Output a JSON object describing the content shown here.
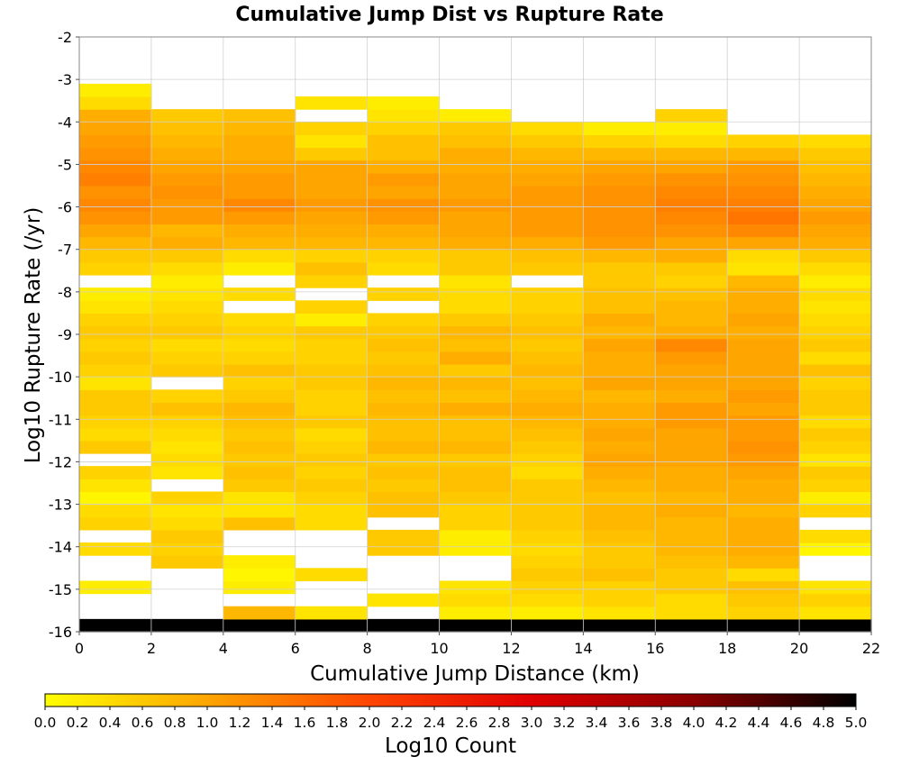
{
  "chart_data": {
    "type": "heatmap",
    "title": "Cumulative Jump Dist vs Rupture Rate",
    "xlabel": "Cumulative Jump Distance (km)",
    "ylabel": "Log10 Rupture Rate (/yr)",
    "colorbar_label": "Log10 Count",
    "xlim": [
      0,
      22
    ],
    "ylim": [
      -16,
      -2
    ],
    "x_ticks": [
      "0",
      "2",
      "4",
      "6",
      "8",
      "10",
      "12",
      "14",
      "16",
      "18",
      "20",
      "22"
    ],
    "y_ticks": [
      "-2",
      "-3",
      "-4",
      "-5",
      "-6",
      "-7",
      "-8",
      "-9",
      "-10",
      "-11",
      "-12",
      "-13",
      "-14",
      "-15",
      "-16"
    ],
    "colorbar_range": [
      0,
      5
    ],
    "colorbar_ticks": [
      "0.0",
      "0.2",
      "0.4",
      "0.6",
      "0.8",
      "1.0",
      "1.2",
      "1.4",
      "1.6",
      "1.8",
      "2.0",
      "2.2",
      "2.4",
      "2.6",
      "2.8",
      "3.0",
      "3.2",
      "3.4",
      "3.6",
      "3.8",
      "4.0",
      "4.2",
      "4.4",
      "4.6",
      "4.8",
      "5.0"
    ],
    "colormap": [
      "#ffff00",
      "#ffa500",
      "#ff4500",
      "#e00000",
      "#8b0000",
      "#000000"
    ],
    "grid": true,
    "x_bin_width": 2,
    "y_bin_height": 0.3,
    "x_bins": [
      1,
      3,
      5,
      7,
      9,
      11,
      13,
      15,
      17,
      19,
      21
    ],
    "y_bins": [
      -15.85,
      -15.55,
      -15.25,
      -14.95,
      -14.65,
      -14.35,
      -14.05,
      -13.75,
      -13.45,
      -13.15,
      -12.85,
      -12.55,
      -12.25,
      -11.95,
      -11.65,
      -11.35,
      -11.05,
      -10.75,
      -10.45,
      -10.15,
      -9.85,
      -9.55,
      -9.25,
      -8.95,
      -8.65,
      -8.35,
      -8.05,
      -7.75,
      -7.45,
      -7.15,
      -6.85,
      -6.55,
      -6.25,
      -5.95,
      -5.65,
      -5.35,
      -5.05,
      -4.75,
      -4.45,
      -4.15,
      -3.85,
      -3.55,
      -3.25
    ],
    "z": [
      [
        5.0,
        5.0,
        5.0,
        5.0,
        5.0,
        5.0,
        5.0,
        5.0,
        5.0,
        5.0,
        5.0
      ],
      [
        null,
        null,
        0.8,
        0.3,
        null,
        0.2,
        0.2,
        0.3,
        0.4,
        0.5,
        0.3
      ],
      [
        null,
        null,
        null,
        null,
        0.3,
        0.4,
        0.4,
        0.5,
        0.4,
        0.6,
        0.5
      ],
      [
        0.2,
        null,
        0.2,
        null,
        null,
        0.3,
        0.5,
        0.5,
        0.6,
        0.7,
        0.3
      ],
      [
        null,
        null,
        0.1,
        0.4,
        null,
        null,
        0.6,
        0.7,
        0.6,
        0.4,
        null
      ],
      [
        null,
        0.6,
        0.2,
        null,
        null,
        null,
        0.5,
        0.6,
        0.7,
        0.8,
        null
      ],
      [
        0.4,
        0.5,
        null,
        null,
        0.6,
        0.2,
        0.4,
        0.6,
        0.8,
        0.9,
        0.1
      ],
      [
        null,
        0.6,
        null,
        null,
        0.6,
        0.2,
        0.5,
        0.7,
        0.8,
        0.9,
        0.4
      ],
      [
        0.5,
        0.4,
        0.7,
        0.4,
        null,
        0.5,
        0.6,
        0.8,
        0.8,
        0.9,
        null
      ],
      [
        0.4,
        0.3,
        0.3,
        0.4,
        0.7,
        0.5,
        0.6,
        0.8,
        0.9,
        0.8,
        0.5
      ],
      [
        0.1,
        0.5,
        0.3,
        0.5,
        0.7,
        0.6,
        0.6,
        0.7,
        0.8,
        0.9,
        0.2
      ],
      [
        0.3,
        null,
        0.6,
        0.6,
        0.6,
        0.7,
        0.6,
        0.8,
        0.9,
        0.9,
        0.5
      ],
      [
        0.5,
        0.3,
        0.7,
        0.5,
        0.7,
        0.7,
        0.4,
        0.9,
        0.9,
        1.0,
        0.6
      ],
      [
        null,
        0.4,
        0.6,
        0.6,
        0.6,
        0.6,
        0.5,
        1.0,
        1.0,
        1.1,
        0.3
      ],
      [
        0.6,
        0.3,
        0.7,
        0.5,
        0.8,
        0.8,
        0.6,
        0.9,
        1.0,
        1.2,
        0.5
      ],
      [
        0.4,
        0.4,
        0.6,
        0.4,
        0.7,
        0.7,
        0.7,
        1.0,
        1.0,
        1.1,
        0.6
      ],
      [
        0.5,
        0.5,
        0.7,
        0.6,
        0.7,
        0.7,
        0.8,
        0.9,
        1.1,
        1.1,
        0.4
      ],
      [
        0.6,
        0.7,
        0.8,
        0.5,
        0.8,
        0.9,
        0.9,
        0.9,
        1.1,
        1.0,
        0.6
      ],
      [
        0.6,
        0.5,
        0.6,
        0.5,
        0.7,
        0.7,
        0.8,
        0.8,
        0.9,
        1.1,
        0.6
      ],
      [
        0.3,
        null,
        0.5,
        0.6,
        0.8,
        0.8,
        0.7,
        1.0,
        1.0,
        1.0,
        0.5
      ],
      [
        0.5,
        0.6,
        0.7,
        0.6,
        0.7,
        0.6,
        0.8,
        0.9,
        1.0,
        1.0,
        0.7
      ],
      [
        0.6,
        0.5,
        0.5,
        0.5,
        0.6,
        0.9,
        0.7,
        0.9,
        1.1,
        1.0,
        0.4
      ],
      [
        0.5,
        0.4,
        0.4,
        0.5,
        0.7,
        0.7,
        0.6,
        1.0,
        1.3,
        1.0,
        0.6
      ],
      [
        0.6,
        0.6,
        0.5,
        0.6,
        0.6,
        0.8,
        0.7,
        0.8,
        0.9,
        0.9,
        0.5
      ],
      [
        0.5,
        0.5,
        0.4,
        0.2,
        0.5,
        0.6,
        0.6,
        0.9,
        0.8,
        1.0,
        0.4
      ],
      [
        0.3,
        0.4,
        null,
        0.5,
        null,
        0.4,
        0.5,
        0.7,
        0.8,
        0.9,
        0.3
      ],
      [
        0.2,
        0.3,
        0.4,
        null,
        0.5,
        0.4,
        0.5,
        0.7,
        0.7,
        0.9,
        0.4
      ],
      [
        null,
        0.2,
        null,
        0.5,
        null,
        0.3,
        null,
        0.6,
        0.5,
        0.8,
        0.2
      ],
      [
        0.5,
        0.4,
        0.2,
        0.7,
        0.4,
        0.6,
        0.6,
        0.6,
        0.6,
        0.3,
        0.4
      ],
      [
        0.6,
        0.6,
        0.4,
        0.5,
        0.5,
        0.6,
        0.7,
        0.8,
        0.9,
        0.4,
        0.6
      ],
      [
        0.8,
        0.9,
        0.8,
        0.8,
        0.8,
        0.9,
        0.9,
        1.1,
        1.0,
        1.0,
        0.9
      ],
      [
        1.0,
        0.8,
        0.9,
        0.9,
        0.9,
        1.0,
        1.1,
        1.2,
        1.2,
        1.3,
        1.0
      ],
      [
        1.2,
        1.1,
        1.1,
        1.0,
        1.1,
        1.0,
        1.1,
        1.2,
        1.3,
        1.5,
        1.1
      ],
      [
        1.3,
        1.1,
        1.3,
        1.1,
        1.2,
        1.1,
        1.1,
        1.2,
        1.4,
        1.4,
        1.0
      ],
      [
        1.2,
        1.2,
        1.1,
        1.0,
        1.0,
        1.0,
        1.1,
        1.2,
        1.3,
        1.3,
        0.9
      ],
      [
        1.4,
        1.1,
        1.1,
        1.0,
        1.1,
        1.0,
        1.0,
        1.1,
        1.2,
        1.2,
        0.8
      ],
      [
        1.3,
        1.0,
        1.0,
        1.0,
        0.9,
        0.9,
        0.9,
        1.0,
        1.0,
        1.1,
        0.7
      ],
      [
        1.2,
        0.9,
        0.9,
        0.6,
        0.7,
        0.9,
        0.8,
        0.8,
        0.8,
        0.8,
        0.6
      ],
      [
        1.1,
        0.8,
        0.9,
        0.3,
        0.7,
        0.7,
        0.6,
        0.5,
        0.4,
        0.5,
        0.4
      ],
      [
        1.0,
        0.7,
        0.8,
        0.5,
        0.5,
        0.6,
        0.4,
        0.2,
        0.2,
        null,
        null
      ],
      [
        0.9,
        0.6,
        0.7,
        null,
        0.3,
        0.2,
        null,
        null,
        0.5,
        null,
        null
      ],
      [
        0.4,
        null,
        null,
        0.3,
        0.2,
        null,
        null,
        null,
        null,
        null,
        null
      ],
      [
        0.2,
        null,
        null,
        null,
        null,
        null,
        null,
        null,
        null,
        null,
        null
      ]
    ]
  }
}
